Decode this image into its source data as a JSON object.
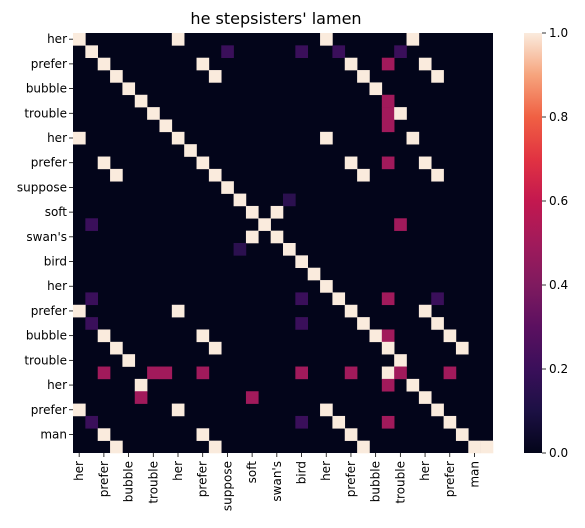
{
  "chart_data": {
    "type": "heatmap",
    "title": "he stepsisters' lamen",
    "row_tick_labels": [
      "her",
      "prefer",
      "bubble",
      "trouble",
      "her",
      "prefer",
      "suppose",
      "soft",
      "swan's",
      "bird",
      "her",
      "prefer",
      "bubble",
      "trouble",
      "her",
      "prefer",
      "man"
    ],
    "col_tick_labels": [
      "her",
      "prefer",
      "bubble",
      "trouble",
      "her",
      "prefer",
      "suppose",
      "soft",
      "swan's",
      "bird",
      "her",
      "prefer",
      "bubble",
      "trouble",
      "her",
      "prefer",
      "man"
    ],
    "n_rows": 34,
    "n_cols": 34,
    "tick_every": 2,
    "colorbar": {
      "ticks": [
        0.0,
        0.2,
        0.4,
        0.6,
        0.8,
        1.0
      ],
      "vmin": 0.0,
      "vmax": 1.0,
      "colormap": "rocket"
    },
    "cells": [
      [
        0,
        0,
        1.0
      ],
      [
        0,
        8,
        1.0
      ],
      [
        0,
        20,
        1.0
      ],
      [
        0,
        27,
        1.0
      ],
      [
        1,
        1,
        1.0
      ],
      [
        1,
        12,
        0.2
      ],
      [
        1,
        18,
        0.2
      ],
      [
        1,
        21,
        0.2
      ],
      [
        1,
        26,
        0.2
      ],
      [
        2,
        2,
        1.0
      ],
      [
        2,
        10,
        1.0
      ],
      [
        2,
        22,
        1.0
      ],
      [
        2,
        25,
        0.5
      ],
      [
        2,
        28,
        1.0
      ],
      [
        3,
        3,
        1.0
      ],
      [
        3,
        11,
        1.0
      ],
      [
        3,
        23,
        1.0
      ],
      [
        3,
        29,
        1.0
      ],
      [
        4,
        4,
        1.0
      ],
      [
        4,
        24,
        1.0
      ],
      [
        5,
        5,
        1.0
      ],
      [
        5,
        25,
        0.5
      ],
      [
        6,
        6,
        1.0
      ],
      [
        6,
        25,
        0.5
      ],
      [
        6,
        26,
        1.0
      ],
      [
        7,
        7,
        1.0
      ],
      [
        7,
        25,
        0.5
      ],
      [
        8,
        0,
        1.0
      ],
      [
        8,
        8,
        1.0
      ],
      [
        8,
        20,
        1.0
      ],
      [
        8,
        27,
        1.0
      ],
      [
        9,
        9,
        1.0
      ],
      [
        10,
        2,
        1.0
      ],
      [
        10,
        10,
        1.0
      ],
      [
        10,
        22,
        1.0
      ],
      [
        10,
        25,
        0.5
      ],
      [
        10,
        28,
        1.0
      ],
      [
        11,
        3,
        1.0
      ],
      [
        11,
        11,
        1.0
      ],
      [
        11,
        23,
        1.0
      ],
      [
        11,
        29,
        1.0
      ],
      [
        12,
        12,
        1.0
      ],
      [
        13,
        13,
        1.0
      ],
      [
        13,
        17,
        0.15
      ],
      [
        14,
        14,
        1.0
      ],
      [
        14,
        16,
        1.0
      ],
      [
        15,
        1,
        0.2
      ],
      [
        15,
        15,
        1.0
      ],
      [
        15,
        26,
        0.5
      ],
      [
        16,
        14,
        1.0
      ],
      [
        16,
        16,
        1.0
      ],
      [
        17,
        13,
        0.15
      ],
      [
        17,
        17,
        1.0
      ],
      [
        18,
        18,
        1.0
      ],
      [
        19,
        19,
        1.0
      ],
      [
        20,
        20,
        1.0
      ],
      [
        21,
        1,
        0.2
      ],
      [
        21,
        18,
        0.2
      ],
      [
        21,
        21,
        1.0
      ],
      [
        21,
        25,
        0.5
      ],
      [
        21,
        29,
        0.2
      ],
      [
        22,
        0,
        1.0
      ],
      [
        22,
        8,
        1.0
      ],
      [
        22,
        22,
        1.0
      ],
      [
        22,
        28,
        1.0
      ],
      [
        23,
        1,
        0.2
      ],
      [
        23,
        18,
        0.2
      ],
      [
        23,
        23,
        1.0
      ],
      [
        23,
        29,
        1.0
      ],
      [
        24,
        2,
        1.0
      ],
      [
        24,
        10,
        1.0
      ],
      [
        24,
        24,
        1.0
      ],
      [
        24,
        25,
        0.5
      ],
      [
        24,
        30,
        1.0
      ],
      [
        25,
        3,
        1.0
      ],
      [
        25,
        11,
        1.0
      ],
      [
        25,
        25,
        1.0
      ],
      [
        25,
        31,
        1.0
      ],
      [
        26,
        4,
        1.0
      ],
      [
        26,
        26,
        1.0
      ],
      [
        27,
        2,
        0.5
      ],
      [
        27,
        6,
        0.5
      ],
      [
        27,
        7,
        0.5
      ],
      [
        27,
        10,
        0.5
      ],
      [
        27,
        18,
        0.5
      ],
      [
        27,
        22,
        0.5
      ],
      [
        27,
        25,
        1.0
      ],
      [
        27,
        26,
        0.5
      ],
      [
        27,
        30,
        0.5
      ],
      [
        28,
        5,
        1.0
      ],
      [
        28,
        25,
        0.5
      ],
      [
        28,
        27,
        1.0
      ],
      [
        29,
        5,
        0.5
      ],
      [
        29,
        14,
        0.5
      ],
      [
        29,
        28,
        1.0
      ],
      [
        30,
        0,
        1.0
      ],
      [
        30,
        8,
        1.0
      ],
      [
        30,
        20,
        1.0
      ],
      [
        30,
        29,
        1.0
      ],
      [
        31,
        1,
        0.2
      ],
      [
        31,
        18,
        0.2
      ],
      [
        31,
        21,
        1.0
      ],
      [
        31,
        25,
        0.5
      ],
      [
        31,
        30,
        1.0
      ],
      [
        32,
        2,
        1.0
      ],
      [
        32,
        10,
        1.0
      ],
      [
        32,
        22,
        1.0
      ],
      [
        32,
        31,
        1.0
      ],
      [
        33,
        3,
        1.0
      ],
      [
        33,
        11,
        1.0
      ],
      [
        33,
        23,
        1.0
      ],
      [
        33,
        32,
        1.0
      ],
      [
        33,
        33,
        1.0
      ]
    ]
  }
}
